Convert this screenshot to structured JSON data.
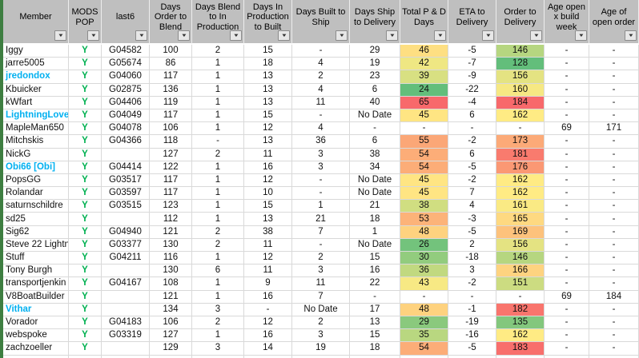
{
  "icons": {
    "filter_dropdown": "▼"
  },
  "colors": {
    "header_bg": "#BFBFBF",
    "grid_line": "#D9D9D9",
    "member_link": "#00B0F0",
    "pop_yes_green": "#00B050",
    "sheet_edge_green": "#3E7E41",
    "scale_low_green": "#63BE7B",
    "scale_mid_yellow": "#FFEB84",
    "scale_high_red": "#F8696B"
  },
  "table": {
    "headers": [
      "Member",
      "MODS POP",
      "last6",
      "Days Order to Blend",
      "Days Blend to In Production",
      "Days In Production to Built",
      "Days Built to Ship",
      "Days Ship to Delivery",
      "Total P & D Days",
      "ETA to Delivery",
      "Order to Delivery",
      "Age open x build week",
      "Age of open order"
    ],
    "rows": [
      {
        "cells": [
          "Iggy",
          "Y",
          "G04582",
          "100",
          "2",
          "15",
          "-",
          "29",
          "46",
          "-5",
          "146",
          "-",
          "-"
        ],
        "link": false,
        "total_bg": "#FEDF82",
        "otd_bg": "#B6D680"
      },
      {
        "cells": [
          "jarre5005",
          "Y",
          "G05674",
          "86",
          "1",
          "18",
          "4",
          "19",
          "42",
          "-7",
          "128",
          "-",
          "-"
        ],
        "link": false,
        "total_bg": "#EFE783",
        "otd_bg": "#63BE7B"
      },
      {
        "cells": [
          "jredondox",
          "Y",
          "G04060",
          "117",
          "1",
          "13",
          "2",
          "23",
          "39",
          "-9",
          "156",
          "-",
          "-"
        ],
        "link": true,
        "total_bg": "#D8E082",
        "otd_bg": "#E4E382"
      },
      {
        "cells": [
          "Kbuicker",
          "Y",
          "G02875",
          "136",
          "1",
          "13",
          "4",
          "6",
          "24",
          "-22",
          "160",
          "-",
          "-"
        ],
        "link": false,
        "total_bg": "#63BE7B",
        "otd_bg": "#F6E883"
      },
      {
        "cells": [
          "kWfart",
          "Y",
          "G04406",
          "119",
          "1",
          "13",
          "11",
          "40",
          "65",
          "-4",
          "184",
          "-",
          "-"
        ],
        "link": false,
        "total_bg": "#F8696B",
        "otd_bg": "#F8696B"
      },
      {
        "cells": [
          "LightningLover",
          "Y",
          "G04049",
          "117",
          "1",
          "15",
          "-",
          "No Date",
          "45",
          "6",
          "162",
          "-",
          "-"
        ],
        "link": true,
        "total_bg": "#FFE583",
        "otd_bg": "#FFEB84"
      },
      {
        "cells": [
          "MapleMan650",
          "Y",
          "G04078",
          "106",
          "1",
          "12",
          "4",
          "-",
          "-",
          "-",
          "-",
          "69",
          "171"
        ],
        "link": false,
        "total_bg": "",
        "otd_bg": ""
      },
      {
        "cells": [
          "Mitchskis",
          "Y",
          "G04366",
          "118",
          "-",
          "13",
          "36",
          "6",
          "55",
          "-2",
          "173",
          "-",
          "-"
        ],
        "link": false,
        "total_bg": "#FBA777",
        "otd_bg": "#FCAA78"
      },
      {
        "cells": [
          "NickG",
          "Y",
          "",
          "127",
          "2",
          "11",
          "3",
          "38",
          "54",
          "6",
          "181",
          "-",
          "-"
        ],
        "link": false,
        "total_bg": "#FCAD78",
        "otd_bg": "#F97B6E"
      },
      {
        "cells": [
          "Obi66 [Obi]",
          "Y",
          "G04414",
          "122",
          "1",
          "16",
          "3",
          "34",
          "54",
          "-5",
          "176",
          "-",
          "-"
        ],
        "link": true,
        "total_bg": "#FCAD78",
        "otd_bg": "#FB9874"
      },
      {
        "cells": [
          "PopsGG",
          "Y",
          "G03517",
          "117",
          "1",
          "12",
          "-",
          "No Date",
          "45",
          "-2",
          "162",
          "-",
          "-"
        ],
        "link": false,
        "total_bg": "#FFE583",
        "otd_bg": "#FFEB84"
      },
      {
        "cells": [
          "Rolandar",
          "Y",
          "G03597",
          "117",
          "1",
          "10",
          "-",
          "No Date",
          "45",
          "7",
          "162",
          "-",
          "-"
        ],
        "link": false,
        "total_bg": "#FFE583",
        "otd_bg": "#FFEB84"
      },
      {
        "cells": [
          "saturnschildre",
          "Y",
          "G03515",
          "123",
          "1",
          "15",
          "1",
          "21",
          "38",
          "4",
          "161",
          "-",
          "-"
        ],
        "link": false,
        "total_bg": "#D0DE81",
        "otd_bg": "#FAEA84"
      },
      {
        "cells": [
          "sd25",
          "Y",
          "",
          "112",
          "1",
          "13",
          "21",
          "18",
          "53",
          "-3",
          "165",
          "-",
          "-"
        ],
        "link": false,
        "total_bg": "#FCB379",
        "otd_bg": "#FED981"
      },
      {
        "cells": [
          "Sig62",
          "Y",
          "G04940",
          "121",
          "2",
          "38",
          "7",
          "1",
          "48",
          "-5",
          "169",
          "-",
          "-"
        ],
        "link": false,
        "total_bg": "#FED27F",
        "otd_bg": "#FDC27C"
      },
      {
        "cells": [
          "Steve 22 Lightn",
          "Y",
          "G03377",
          "130",
          "2",
          "11",
          "-",
          "No Date",
          "26",
          "2",
          "156",
          "-",
          "-"
        ],
        "link": false,
        "total_bg": "#73C37C",
        "otd_bg": "#E4E382"
      },
      {
        "cells": [
          "Stuff",
          "Y",
          "G04211",
          "116",
          "1",
          "12",
          "2",
          "15",
          "30",
          "-18",
          "146",
          "-",
          "-"
        ],
        "link": false,
        "total_bg": "#92CC7E",
        "otd_bg": "#B6D680"
      },
      {
        "cells": [
          "Tony Burgh",
          "Y",
          "",
          "130",
          "6",
          "11",
          "3",
          "16",
          "36",
          "3",
          "166",
          "-",
          "-"
        ],
        "link": false,
        "total_bg": "#C1D980",
        "otd_bg": "#FED380"
      },
      {
        "cells": [
          "transportjenkin",
          "Y",
          "G04167",
          "108",
          "1",
          "9",
          "11",
          "22",
          "43",
          "-2",
          "151",
          "-",
          "-"
        ],
        "link": false,
        "total_bg": "#F7E984",
        "otd_bg": "#CCDC81"
      },
      {
        "cells": [
          "V8BoatBuilder",
          "Y",
          "",
          "121",
          "1",
          "16",
          "7",
          "-",
          "-",
          "-",
          "-",
          "69",
          "184"
        ],
        "link": false,
        "total_bg": "",
        "otd_bg": ""
      },
      {
        "cells": [
          "Vithar",
          "Y",
          "",
          "134",
          "3",
          "-",
          "No Date",
          "17",
          "48",
          "-1",
          "182",
          "-",
          "-"
        ],
        "link": true,
        "total_bg": "#FED27F",
        "otd_bg": "#F9756D"
      },
      {
        "cells": [
          "Vorador",
          "Y",
          "G04183",
          "106",
          "2",
          "12",
          "2",
          "13",
          "29",
          "-19",
          "135",
          "-",
          "-"
        ],
        "link": false,
        "total_bg": "#8AC97D",
        "otd_bg": "#83C77D"
      },
      {
        "cells": [
          "webspoke",
          "Y",
          "G03319",
          "127",
          "1",
          "16",
          "3",
          "15",
          "35",
          "-16",
          "162",
          "-",
          "-"
        ],
        "link": false,
        "total_bg": "#B9D780",
        "otd_bg": "#FFEB84"
      },
      {
        "cells": [
          "zachzoeller",
          "Y",
          "",
          "129",
          "3",
          "14",
          "19",
          "18",
          "54",
          "-5",
          "183",
          "-",
          "-"
        ],
        "link": false,
        "total_bg": "#FCAD78",
        "otd_bg": "#F86F6C"
      }
    ]
  }
}
